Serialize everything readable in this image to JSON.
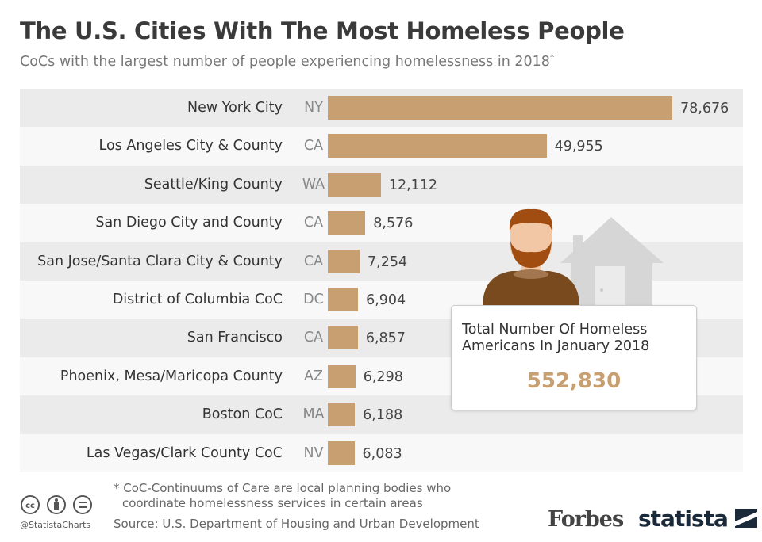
{
  "header": {
    "title": "The U.S. Cities With The Most Homeless People",
    "subtitle": "CoCs with the largest number of people experiencing homelessness in 2018",
    "subtitle_mark": "*"
  },
  "chart_data": {
    "type": "bar",
    "orientation": "horizontal",
    "categories": [
      "New York City",
      "Los Angeles City & County",
      "Seattle/King County",
      "San Diego City and County",
      "San Jose/Santa Clara City & County",
      "District of Columbia CoC",
      "San Francisco",
      "Phoenix, Mesa/Maricopa County",
      "Boston CoC",
      "Las Vegas/Clark County CoC"
    ],
    "states": [
      "NY",
      "CA",
      "WA",
      "CA",
      "CA",
      "DC",
      "CA",
      "AZ",
      "MA",
      "NV"
    ],
    "values": [
      78676,
      49955,
      12112,
      8576,
      7254,
      6904,
      6857,
      6298,
      6188,
      6083
    ],
    "value_labels": [
      "78,676",
      "49,955",
      "12,112",
      "8,576",
      "7,254",
      "6,904",
      "6,857",
      "6,298",
      "6,188",
      "6,083"
    ],
    "bar_color": "#c89f70"
  },
  "callout": {
    "label": "Total Number Of Homeless Americans In January 2018",
    "value": "552,830",
    "icons": [
      "person-icon",
      "house-icon"
    ]
  },
  "footer": {
    "note_line1": "* CoC-Continuums of Care are local planning bodies who",
    "note_line2": "coordinate homelessness services in certain areas",
    "source": "Source: U.S. Department of Housing and Urban Development",
    "handle": "@StatistaCharts",
    "forbes": "Forbes",
    "statista": "statista"
  }
}
